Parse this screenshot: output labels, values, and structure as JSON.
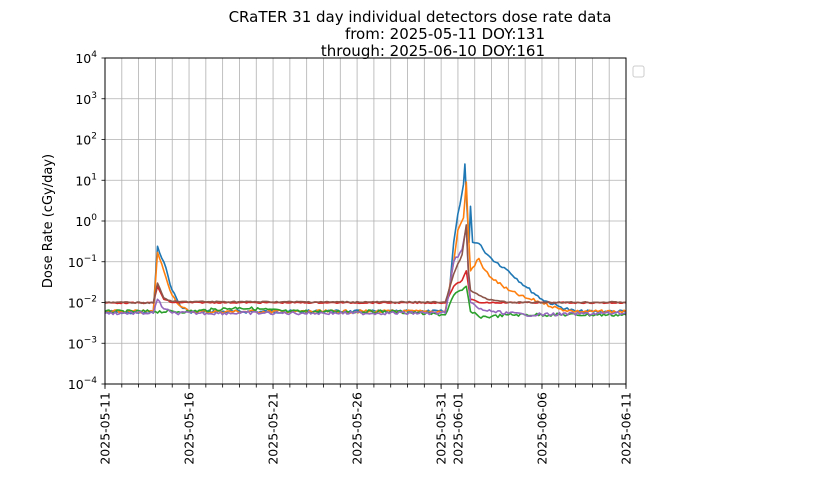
{
  "chart_data": {
    "type": "line",
    "title": "CRaTER 31 day individual detectors dose rate data",
    "subtitle_from": "from: 2025-05-11 DOY:131",
    "subtitle_through": "through: 2025-06-10 DOY:161",
    "ylabel": "Dose Rate (cGy/day)",
    "xlabel": "",
    "yscale": "log",
    "ylim": [
      0.0001,
      10000
    ],
    "xlim": [
      "2025-05-11",
      "2025-06-11"
    ],
    "x_tick_labels": [
      "2025-05-11",
      "2025-05-16",
      "2025-05-21",
      "2025-05-26",
      "2025-05-31",
      "2025-06-01",
      "2025-06-06",
      "2025-06-11"
    ],
    "y_tick_labels": [
      {
        "base": "10",
        "exp": "−4"
      },
      {
        "base": "10",
        "exp": "−3"
      },
      {
        "base": "10",
        "exp": "−2"
      },
      {
        "base": "10",
        "exp": "−1"
      },
      {
        "base": "10",
        "exp": "0"
      },
      {
        "base": "10",
        "exp": "1"
      },
      {
        "base": "10",
        "exp": "2"
      },
      {
        "base": "10",
        "exp": "3"
      },
      {
        "base": "10",
        "exp": "4"
      }
    ],
    "grid": true,
    "legend": "empty box, outside right of plot, top",
    "series": [
      {
        "color": "#1f77b4",
        "points": [
          [
            "2025-05-11",
            0.006
          ],
          [
            "2025-05-13 00:00",
            0.0055
          ],
          [
            "2025-05-13 21:00",
            0.0055
          ],
          [
            "2025-05-14 03:00",
            0.24
          ],
          [
            "2025-05-14 12:00",
            0.1
          ],
          [
            "2025-05-15 00:00",
            0.02
          ],
          [
            "2025-05-15 12:00",
            0.008
          ],
          [
            "2025-05-16 00:00",
            0.006
          ],
          [
            "2025-05-20",
            0.006
          ],
          [
            "2025-05-25",
            0.006
          ],
          [
            "2025-05-30",
            0.006
          ],
          [
            "2025-05-31 06:00",
            0.006
          ],
          [
            "2025-05-31 12:00",
            0.02
          ],
          [
            "2025-05-31 18:00",
            0.3
          ],
          [
            "2025-06-01 00:00",
            1.5
          ],
          [
            "2025-06-01 06:00",
            5
          ],
          [
            "2025-06-01 08:00",
            8
          ],
          [
            "2025-06-01 10:00",
            25
          ],
          [
            "2025-06-01 13:00",
            2
          ],
          [
            "2025-06-01 16:00",
            0.3
          ],
          [
            "2025-06-01 18:00",
            2.3
          ],
          [
            "2025-06-01 21:00",
            0.3
          ],
          [
            "2025-06-02 06:00",
            0.28
          ],
          [
            "2025-06-02 12:00",
            0.2
          ],
          [
            "2025-06-03",
            0.12
          ],
          [
            "2025-06-04",
            0.06
          ],
          [
            "2025-06-05",
            0.025
          ],
          [
            "2025-06-06",
            0.012
          ],
          [
            "2025-06-07",
            0.008
          ],
          [
            "2025-06-08",
            0.006
          ],
          [
            "2025-06-11",
            0.006
          ]
        ]
      },
      {
        "color": "#ff7f0e",
        "points": [
          [
            "2025-05-11",
            0.006
          ],
          [
            "2025-05-13 21:00",
            0.006
          ],
          [
            "2025-05-14 03:00",
            0.17
          ],
          [
            "2025-05-14 12:00",
            0.06
          ],
          [
            "2025-05-15 00:00",
            0.015
          ],
          [
            "2025-05-15 12:00",
            0.008
          ],
          [
            "2025-05-16 00:00",
            0.006
          ],
          [
            "2025-05-30",
            0.006
          ],
          [
            "2025-05-31 06:00",
            0.006
          ],
          [
            "2025-05-31 18:00",
            0.1
          ],
          [
            "2025-06-01 00:00",
            0.6
          ],
          [
            "2025-06-01 08:00",
            1.2
          ],
          [
            "2025-06-01 12:00",
            9
          ],
          [
            "2025-06-01 15:00",
            0.5
          ],
          [
            "2025-06-01 18:00",
            0.06
          ],
          [
            "2025-06-02 06:00",
            0.12
          ],
          [
            "2025-06-02 12:00",
            0.07
          ],
          [
            "2025-06-03",
            0.04
          ],
          [
            "2025-06-04",
            0.02
          ],
          [
            "2025-06-05",
            0.013
          ],
          [
            "2025-06-06",
            0.01
          ],
          [
            "2025-06-07",
            0.007
          ],
          [
            "2025-06-08",
            0.006
          ],
          [
            "2025-06-11",
            0.006
          ]
        ]
      },
      {
        "color": "#2ca02c",
        "points": [
          [
            "2025-05-11",
            0.006
          ],
          [
            "2025-05-14",
            0.006
          ],
          [
            "2025-05-16",
            0.006
          ],
          [
            "2025-05-19",
            0.0075
          ],
          [
            "2025-05-22",
            0.006
          ],
          [
            "2025-05-28",
            0.006
          ],
          [
            "2025-05-31 06:00",
            0.005
          ],
          [
            "2025-05-31 18:00",
            0.015
          ],
          [
            "2025-06-01 06:00",
            0.02
          ],
          [
            "2025-06-01 12:00",
            0.025
          ],
          [
            "2025-06-01 18:00",
            0.006
          ],
          [
            "2025-06-02 06:00",
            0.0045
          ],
          [
            "2025-06-03",
            0.0045
          ],
          [
            "2025-06-04",
            0.005
          ],
          [
            "2025-06-11",
            0.005
          ]
        ]
      },
      {
        "color": "#d62728",
        "points": [
          [
            "2025-05-11",
            0.0098
          ],
          [
            "2025-05-13 21:00",
            0.0098
          ],
          [
            "2025-05-14 03:00",
            0.025
          ],
          [
            "2025-05-14 12:00",
            0.012
          ],
          [
            "2025-05-15 00:00",
            0.01
          ],
          [
            "2025-05-31 06:00",
            0.0098
          ],
          [
            "2025-05-31 18:00",
            0.025
          ],
          [
            "2025-06-01 06:00",
            0.035
          ],
          [
            "2025-06-01 12:00",
            0.06
          ],
          [
            "2025-06-01 18:00",
            0.012
          ],
          [
            "2025-06-02 06:00",
            0.01
          ],
          [
            "2025-06-11",
            0.0098
          ]
        ]
      },
      {
        "color": "#9467bd",
        "points": [
          [
            "2025-05-11",
            0.0055
          ],
          [
            "2025-05-13 21:00",
            0.0055
          ],
          [
            "2025-05-14 03:00",
            0.012
          ],
          [
            "2025-05-14 12:00",
            0.007
          ],
          [
            "2025-05-15 00:00",
            0.0055
          ],
          [
            "2025-05-31 06:00",
            0.0055
          ],
          [
            "2025-05-31 12:00",
            0.02
          ],
          [
            "2025-05-31 18:00",
            0.1
          ],
          [
            "2025-06-01 06:00",
            0.2
          ],
          [
            "2025-06-01 12:00",
            0.7
          ],
          [
            "2025-06-01 15:00",
            0.05
          ],
          [
            "2025-06-01 18:00",
            0.01
          ],
          [
            "2025-06-02 06:00",
            0.007
          ],
          [
            "2025-06-03",
            0.006
          ],
          [
            "2025-06-05",
            0.005
          ],
          [
            "2025-06-11",
            0.0055
          ]
        ]
      },
      {
        "color": "#8c564b",
        "points": [
          [
            "2025-05-11",
            0.0102
          ],
          [
            "2025-05-13 21:00",
            0.0098
          ],
          [
            "2025-05-14 03:00",
            0.03
          ],
          [
            "2025-05-14 12:00",
            0.013
          ],
          [
            "2025-05-15 00:00",
            0.0105
          ],
          [
            "2025-05-31 06:00",
            0.0102
          ],
          [
            "2025-05-31 18:00",
            0.05
          ],
          [
            "2025-06-01 06:00",
            0.15
          ],
          [
            "2025-06-01 12:00",
            0.8
          ],
          [
            "2025-06-01 15:00",
            0.06
          ],
          [
            "2025-06-01 18:00",
            0.02
          ],
          [
            "2025-06-02 06:00",
            0.015
          ],
          [
            "2025-06-02 18:00",
            0.012
          ],
          [
            "2025-06-04",
            0.01
          ],
          [
            "2025-06-11",
            0.0102
          ]
        ]
      }
    ]
  }
}
